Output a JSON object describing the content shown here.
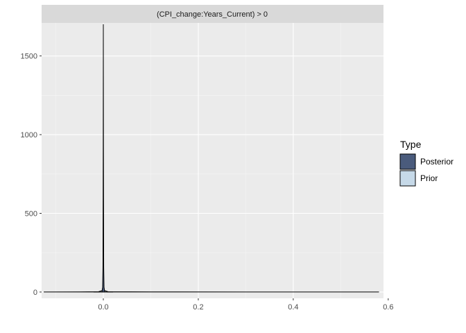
{
  "chart_data": {
    "type": "area",
    "facet_label": "(CPI_change:Years_Current) > 0",
    "xlim": [
      -0.13,
      0.59
    ],
    "ylim": [
      -40,
      1710
    ],
    "x_ticks": [
      0.0,
      0.2,
      0.4,
      0.6
    ],
    "x_tick_labels": [
      "0.0",
      "0.2",
      "0.4",
      "0.6"
    ],
    "y_ticks": [
      0,
      500,
      1000,
      1500
    ],
    "y_tick_labels": [
      "0",
      "500",
      "1000",
      "1500"
    ],
    "grid": true,
    "legend": {
      "title": "Type",
      "position": "right",
      "entries": [
        {
          "label": "Posterior",
          "color": "#4a5b7c"
        },
        {
          "label": "Prior",
          "color": "#c6d9e8"
        }
      ]
    },
    "series": [
      {
        "name": "Posterior",
        "color": "#4a5b7c",
        "points": [
          [
            -0.02,
            0
          ],
          [
            -0.003,
            0
          ],
          [
            -0.0015,
            30
          ],
          [
            -0.0008,
            160
          ],
          [
            -0.0004,
            600
          ],
          [
            0.0,
            1700
          ],
          [
            0.0004,
            600
          ],
          [
            0.0008,
            160
          ],
          [
            0.0015,
            30
          ],
          [
            0.003,
            0
          ],
          [
            0.02,
            0
          ]
        ]
      },
      {
        "name": "Prior",
        "color": "#c6d9e8",
        "points": [
          [
            -0.125,
            0
          ],
          [
            -0.05,
            0.5
          ],
          [
            -0.01,
            2
          ],
          [
            -0.002,
            10
          ],
          [
            -0.0005,
            60
          ],
          [
            0.0,
            920
          ],
          [
            0.0005,
            60
          ],
          [
            0.002,
            10
          ],
          [
            0.01,
            2
          ],
          [
            0.1,
            0.8
          ],
          [
            0.3,
            0.3
          ],
          [
            0.42,
            0.1
          ],
          [
            0.58,
            0
          ]
        ]
      }
    ]
  }
}
